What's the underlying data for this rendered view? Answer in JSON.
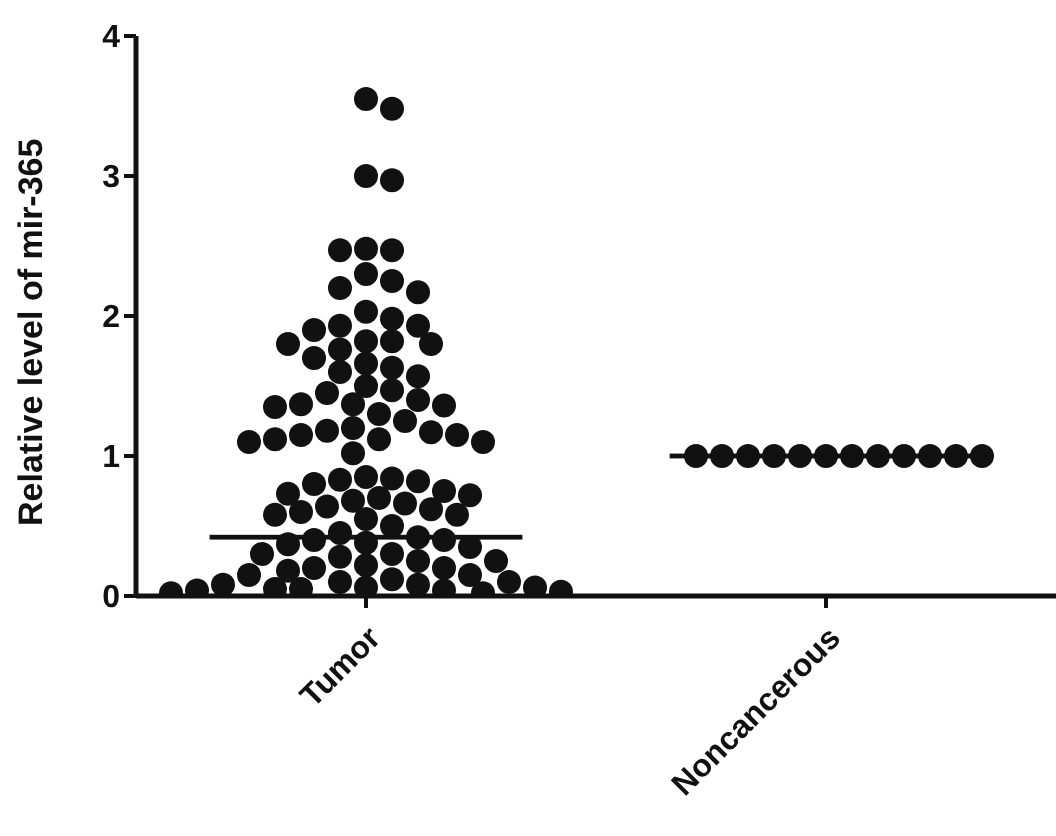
{
  "chart_data": {
    "type": "scatter",
    "ylabel": "Relative level of mir-365",
    "categories": [
      "Tumor",
      "Noncancerous"
    ],
    "ylim": [
      0,
      4
    ],
    "yticks": [
      0,
      1,
      2,
      3,
      4
    ],
    "grid": false,
    "legend": false,
    "marker": "circle",
    "series": [
      {
        "color": "#111111",
        "x": [
          "Tumor",
          "Tumor",
          "Tumor",
          "Tumor",
          "Tumor",
          "Tumor",
          "Tumor",
          "Tumor",
          "Tumor",
          "Tumor",
          "Tumor",
          "Tumor",
          "Tumor",
          "Tumor",
          "Tumor",
          "Tumor",
          "Tumor",
          "Tumor",
          "Tumor",
          "Tumor",
          "Tumor",
          "Tumor",
          "Tumor",
          "Tumor",
          "Tumor",
          "Tumor",
          "Tumor",
          "Tumor",
          "Tumor",
          "Tumor",
          "Tumor",
          "Tumor",
          "Tumor",
          "Tumor",
          "Tumor",
          "Tumor",
          "Tumor",
          "Tumor",
          "Tumor",
          "Tumor",
          "Tumor",
          "Tumor",
          "Tumor",
          "Tumor",
          "Tumor",
          "Tumor",
          "Tumor",
          "Tumor",
          "Tumor",
          "Tumor",
          "Tumor",
          "Tumor",
          "Tumor",
          "Tumor",
          "Tumor",
          "Tumor",
          "Tumor",
          "Tumor",
          "Tumor",
          "Tumor",
          "Tumor",
          "Tumor",
          "Tumor",
          "Tumor",
          "Tumor",
          "Tumor",
          "Tumor",
          "Tumor",
          "Tumor",
          "Tumor",
          "Tumor",
          "Tumor",
          "Tumor",
          "Tumor",
          "Tumor",
          "Tumor",
          "Tumor",
          "Tumor",
          "Tumor",
          "Tumor",
          "Tumor",
          "Tumor",
          "Tumor",
          "Tumor",
          "Tumor",
          "Tumor",
          "Tumor",
          "Tumor",
          "Tumor",
          "Tumor",
          "Tumor",
          "Tumor",
          "Tumor",
          "Tumor",
          "Tumor",
          "Tumor"
        ],
        "values": [
          3.55,
          3.48,
          3.0,
          2.97,
          2.48,
          2.47,
          2.47,
          2.3,
          2.25,
          2.2,
          2.17,
          2.03,
          1.98,
          1.93,
          1.93,
          1.9,
          1.82,
          1.82,
          1.8,
          1.8,
          1.76,
          1.7,
          1.66,
          1.63,
          1.6,
          1.57,
          1.5,
          1.47,
          1.45,
          1.4,
          1.37,
          1.37,
          1.36,
          1.35,
          1.3,
          1.25,
          1.2,
          1.18,
          1.17,
          1.15,
          1.15,
          1.12,
          1.12,
          1.1,
          1.1,
          1.02,
          0.85,
          0.84,
          0.83,
          0.82,
          0.8,
          0.75,
          0.73,
          0.72,
          0.7,
          0.68,
          0.66,
          0.64,
          0.62,
          0.6,
          0.58,
          0.58,
          0.55,
          0.5,
          0.45,
          0.42,
          0.4,
          0.4,
          0.38,
          0.37,
          0.35,
          0.3,
          0.3,
          0.28,
          0.25,
          0.25,
          0.22,
          0.2,
          0.2,
          0.18,
          0.15,
          0.15,
          0.12,
          0.1,
          0.1,
          0.08,
          0.08,
          0.06,
          0.06,
          0.05,
          0.05,
          0.04,
          0.04,
          0.03,
          0.02,
          0.02
        ]
      },
      {
        "color": "#111111",
        "x": [
          "Noncancerous",
          "Noncancerous",
          "Noncancerous",
          "Noncancerous",
          "Noncancerous",
          "Noncancerous",
          "Noncancerous",
          "Noncancerous",
          "Noncancerous",
          "Noncancerous",
          "Noncancerous",
          "Noncancerous"
        ],
        "values": [
          1,
          1,
          1,
          1,
          1,
          1,
          1,
          1,
          1,
          1,
          1,
          1
        ]
      }
    ],
    "ref_lines": [
      {
        "axis": "y",
        "value": 0.42,
        "color": "#111111"
      },
      {
        "axis": "y",
        "value": 1.0,
        "color": "#111111"
      }
    ]
  }
}
